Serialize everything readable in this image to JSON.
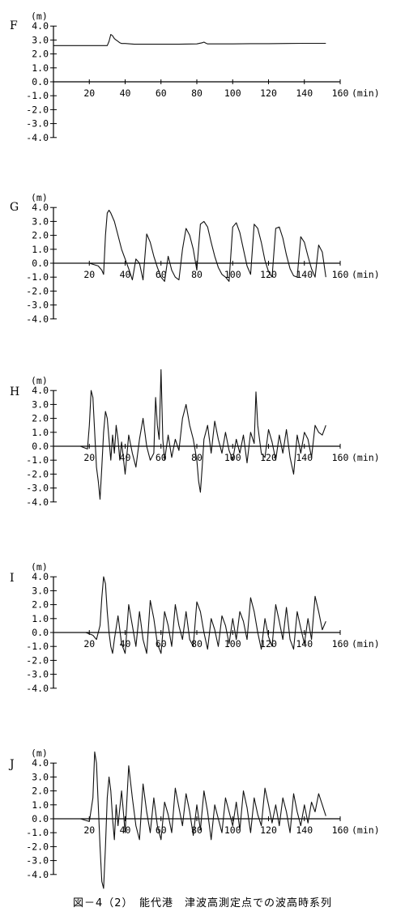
{
  "caption": "図－4（2）　能代港　津波高測定点での波高時系列",
  "chart_data": [
    {
      "type": "line",
      "station": "F",
      "ylabel": "(m)",
      "xlabel": "(min)",
      "xlim": [
        0,
        160
      ],
      "ylim": [
        -4,
        4
      ],
      "xticks": [
        "20",
        "40",
        "60",
        "80",
        "100",
        "120",
        "140",
        "160"
      ],
      "yticks": [
        "4.0",
        "3.0",
        "2.0",
        "1.0",
        "0.0",
        "-1.0",
        "-2.0",
        "-3.0",
        "-4.0"
      ],
      "x_end": 152,
      "series": [
        {
          "x": [
            0,
            30,
            31,
            32,
            33,
            34,
            35,
            36,
            37,
            38,
            40,
            45,
            50,
            60,
            70,
            80,
            83,
            84,
            85,
            86,
            88,
            90,
            100,
            110,
            120,
            130,
            140,
            152
          ],
          "values": [
            2.6,
            2.6,
            2.9,
            3.4,
            3.3,
            3.1,
            3.0,
            2.9,
            2.8,
            2.75,
            2.75,
            2.7,
            2.7,
            2.7,
            2.7,
            2.72,
            2.8,
            2.85,
            2.78,
            2.72,
            2.72,
            2.72,
            2.72,
            2.74,
            2.74,
            2.75,
            2.76,
            2.76
          ]
        }
      ]
    },
    {
      "type": "line",
      "station": "G",
      "ylabel": "(m)",
      "xlabel": "(min)",
      "xlim": [
        0,
        160
      ],
      "ylim": [
        -4,
        4
      ],
      "xticks": [
        "20",
        "40",
        "60",
        "80",
        "100",
        "120",
        "140",
        "160"
      ],
      "yticks": [
        "4.0",
        "3.0",
        "2.0",
        "1.0",
        "0.0",
        "-1.0",
        "-2.0",
        "-3.0",
        "-4.0"
      ],
      "x_end": 152,
      "series": [
        {
          "x": [
            0,
            20,
            25,
            27,
            28,
            29,
            30,
            31,
            32,
            34,
            36,
            38,
            40,
            42,
            44,
            46,
            48,
            50,
            52,
            54,
            56,
            58,
            60,
            62,
            64,
            66,
            68,
            70,
            72,
            74,
            76,
            78,
            80,
            82,
            84,
            86,
            88,
            90,
            92,
            94,
            96,
            98,
            100,
            102,
            104,
            106,
            108,
            110,
            112,
            114,
            116,
            118,
            120,
            122,
            124,
            126,
            128,
            130,
            132,
            134,
            136,
            138,
            140,
            142,
            144,
            146,
            148,
            150,
            152
          ],
          "values": [
            0,
            0,
            -0.2,
            -0.5,
            -0.8,
            2.0,
            3.6,
            3.8,
            3.6,
            3.0,
            2.0,
            1.0,
            0.3,
            -0.4,
            -1.2,
            0.3,
            0,
            -1.2,
            2.1,
            1.5,
            0.5,
            -0.3,
            -1.0,
            -1.3,
            0.5,
            -0.5,
            -1.0,
            -1.2,
            1.0,
            2.5,
            2.0,
            1.0,
            -0.5,
            2.8,
            3.0,
            2.6,
            1.5,
            0.5,
            -0.3,
            -0.8,
            -1.0,
            -1.3,
            2.6,
            2.9,
            2.2,
            1.0,
            -0.2,
            -0.8,
            2.8,
            2.5,
            1.5,
            0.2,
            -0.6,
            -1.0,
            2.5,
            2.6,
            1.8,
            0.6,
            -0.4,
            -0.9,
            -1.0,
            1.9,
            1.5,
            0.5,
            -0.4,
            -1.0,
            1.3,
            0.8,
            -1.0
          ]
        }
      ]
    },
    {
      "type": "line",
      "station": "H",
      "ylabel": "(m)",
      "xlabel": "(min)",
      "xlim": [
        0,
        160
      ],
      "ylim": [
        -4,
        4
      ],
      "xticks": [
        "20",
        "40",
        "60",
        "80",
        "100",
        "120",
        "140",
        "160"
      ],
      "yticks": [
        "4.0",
        "3.0",
        "2.0",
        "1.0",
        "0.0",
        "-1.0",
        "-2.0",
        "-3.0",
        "-4.0"
      ],
      "x_end": 152,
      "series": [
        {
          "x": [
            0,
            15,
            19,
            20,
            21,
            22,
            23,
            24,
            25,
            26,
            27,
            28,
            29,
            30,
            31,
            32,
            33,
            34,
            35,
            36,
            37,
            38,
            40,
            42,
            44,
            46,
            48,
            50,
            52,
            54,
            56,
            57,
            58,
            59,
            60,
            61,
            62,
            64,
            66,
            68,
            70,
            72,
            74,
            76,
            78,
            80,
            81,
            82,
            83,
            84,
            86,
            88,
            90,
            92,
            94,
            96,
            98,
            100,
            102,
            104,
            106,
            108,
            110,
            112,
            113,
            114,
            116,
            118,
            120,
            122,
            124,
            126,
            128,
            130,
            132,
            134,
            136,
            138,
            140,
            142,
            144,
            146,
            148,
            150,
            152
          ],
          "values": [
            0,
            0,
            -0.2,
            1.5,
            4.0,
            3.5,
            1.0,
            -1.5,
            -2.5,
            -3.8,
            -1.5,
            1.0,
            2.5,
            2.0,
            0.5,
            -1.0,
            0.8,
            -0.5,
            1.5,
            0.5,
            -1.0,
            0.3,
            -2.0,
            0.8,
            -0.5,
            -1.5,
            0.5,
            2.0,
            0,
            -1.0,
            -0.5,
            3.5,
            1.5,
            0.5,
            5.5,
            0.5,
            -1.0,
            0.8,
            -0.8,
            0.5,
            -0.3,
            2.0,
            3.0,
            1.5,
            0.5,
            -1.0,
            -2.5,
            -3.3,
            -1.5,
            0.5,
            1.5,
            -0.5,
            1.8,
            0.5,
            -0.5,
            1.0,
            -0.3,
            -1.0,
            0.5,
            -0.5,
            0.8,
            -1.2,
            1.0,
            0.2,
            3.9,
            1.5,
            -0.5,
            -0.8,
            1.2,
            0.3,
            -1.0,
            0.8,
            -0.5,
            1.2,
            -0.8,
            -2.0,
            0.8,
            -0.5,
            1.0,
            0.5,
            -0.8,
            1.5,
            1.0,
            0.8,
            1.5
          ]
        }
      ]
    },
    {
      "type": "line",
      "station": "I",
      "ylabel": "(m)",
      "xlabel": "(min)",
      "xlim": [
        0,
        160
      ],
      "ylim": [
        -4,
        4
      ],
      "xticks": [
        "20",
        "40",
        "60",
        "80",
        "100",
        "120",
        "140",
        "160"
      ],
      "yticks": [
        "4.0",
        "3.0",
        "2.0",
        "1.0",
        "0.0",
        "-1.0",
        "-2.0",
        "-3.0",
        "-4.0"
      ],
      "x_end": 152,
      "series": [
        {
          "x": [
            0,
            18,
            22,
            24,
            26,
            27,
            28,
            29,
            30,
            31,
            32,
            33,
            34,
            36,
            38,
            40,
            42,
            44,
            46,
            48,
            50,
            52,
            54,
            56,
            58,
            60,
            62,
            64,
            66,
            68,
            70,
            72,
            74,
            76,
            78,
            80,
            82,
            84,
            86,
            88,
            90,
            92,
            94,
            96,
            98,
            100,
            102,
            104,
            106,
            108,
            110,
            112,
            114,
            116,
            118,
            120,
            122,
            124,
            126,
            128,
            130,
            132,
            134,
            136,
            138,
            140,
            142,
            144,
            146,
            148,
            150,
            152
          ],
          "values": [
            0,
            0,
            -0.2,
            -0.5,
            0.5,
            2.5,
            4.0,
            3.5,
            1.5,
            0,
            -1.0,
            -1.5,
            -0.5,
            1.2,
            -0.8,
            -1.5,
            2.0,
            0.5,
            -1.0,
            1.5,
            -0.5,
            -1.5,
            2.3,
            1.0,
            -0.8,
            -1.5,
            1.5,
            0.5,
            -1.0,
            2.0,
            0.5,
            -0.5,
            1.5,
            -0.5,
            -1.0,
            2.2,
            1.5,
            0,
            -1.2,
            1.0,
            0.2,
            -1.0,
            1.2,
            0.5,
            -0.8,
            1.0,
            -0.5,
            1.5,
            0.8,
            -0.5,
            2.5,
            1.5,
            0,
            -1.2,
            1.0,
            -0.3,
            -1.0,
            2.0,
            0.8,
            -0.5,
            1.8,
            -0.5,
            -1.2,
            1.5,
            0.3,
            -0.8,
            1.0,
            -0.5,
            2.6,
            1.5,
            0.2,
            0.8
          ]
        }
      ]
    },
    {
      "type": "line",
      "station": "J",
      "ylabel": "(m)",
      "xlabel": "(min)",
      "xlim": [
        0,
        160
      ],
      "ylim": [
        -4,
        4
      ],
      "xticks": [
        "20",
        "40",
        "60",
        "80",
        "100",
        "120",
        "140",
        "160"
      ],
      "yticks": [
        "4.0",
        "3.0",
        "2.0",
        "1.0",
        "0.0",
        "-1.0",
        "-2.0",
        "-3.0",
        "-4.0"
      ],
      "x_end": 152,
      "series": [
        {
          "x": [
            0,
            15,
            20,
            22,
            23,
            24,
            25,
            26,
            27,
            28,
            29,
            30,
            31,
            32,
            33,
            34,
            35,
            36,
            38,
            40,
            42,
            44,
            46,
            48,
            50,
            52,
            54,
            56,
            58,
            60,
            62,
            64,
            66,
            68,
            70,
            72,
            74,
            76,
            78,
            80,
            82,
            84,
            86,
            88,
            90,
            92,
            94,
            96,
            98,
            100,
            102,
            104,
            106,
            108,
            110,
            112,
            114,
            116,
            118,
            120,
            122,
            124,
            126,
            128,
            130,
            132,
            134,
            136,
            138,
            140,
            142,
            144,
            146,
            148,
            150,
            152
          ],
          "values": [
            0,
            0,
            -0.2,
            1.5,
            4.8,
            4.0,
            1.0,
            -2.0,
            -4.5,
            -5.0,
            -2.0,
            1.5,
            3.0,
            2.0,
            0,
            -1.5,
            1.0,
            -0.5,
            2.0,
            -1.0,
            3.8,
            1.5,
            -0.5,
            -1.5,
            2.5,
            0.5,
            -1.0,
            1.5,
            -0.5,
            -1.5,
            1.2,
            0.3,
            -1.0,
            2.2,
            0.8,
            -0.5,
            1.8,
            0.5,
            -1.2,
            1.0,
            -0.8,
            2.0,
            0.5,
            -1.5,
            1.0,
            0,
            -1.0,
            1.5,
            0.5,
            -0.5,
            1.2,
            -0.8,
            2.0,
            0.8,
            -1.0,
            1.5,
            0.3,
            -0.5,
            2.2,
            1.0,
            -0.3,
            1.0,
            -0.5,
            1.5,
            0.5,
            -1.0,
            1.8,
            0.5,
            -0.5,
            1.0,
            -0.3,
            1.2,
            0.5,
            1.8,
            1.0,
            0.2
          ]
        }
      ]
    }
  ]
}
